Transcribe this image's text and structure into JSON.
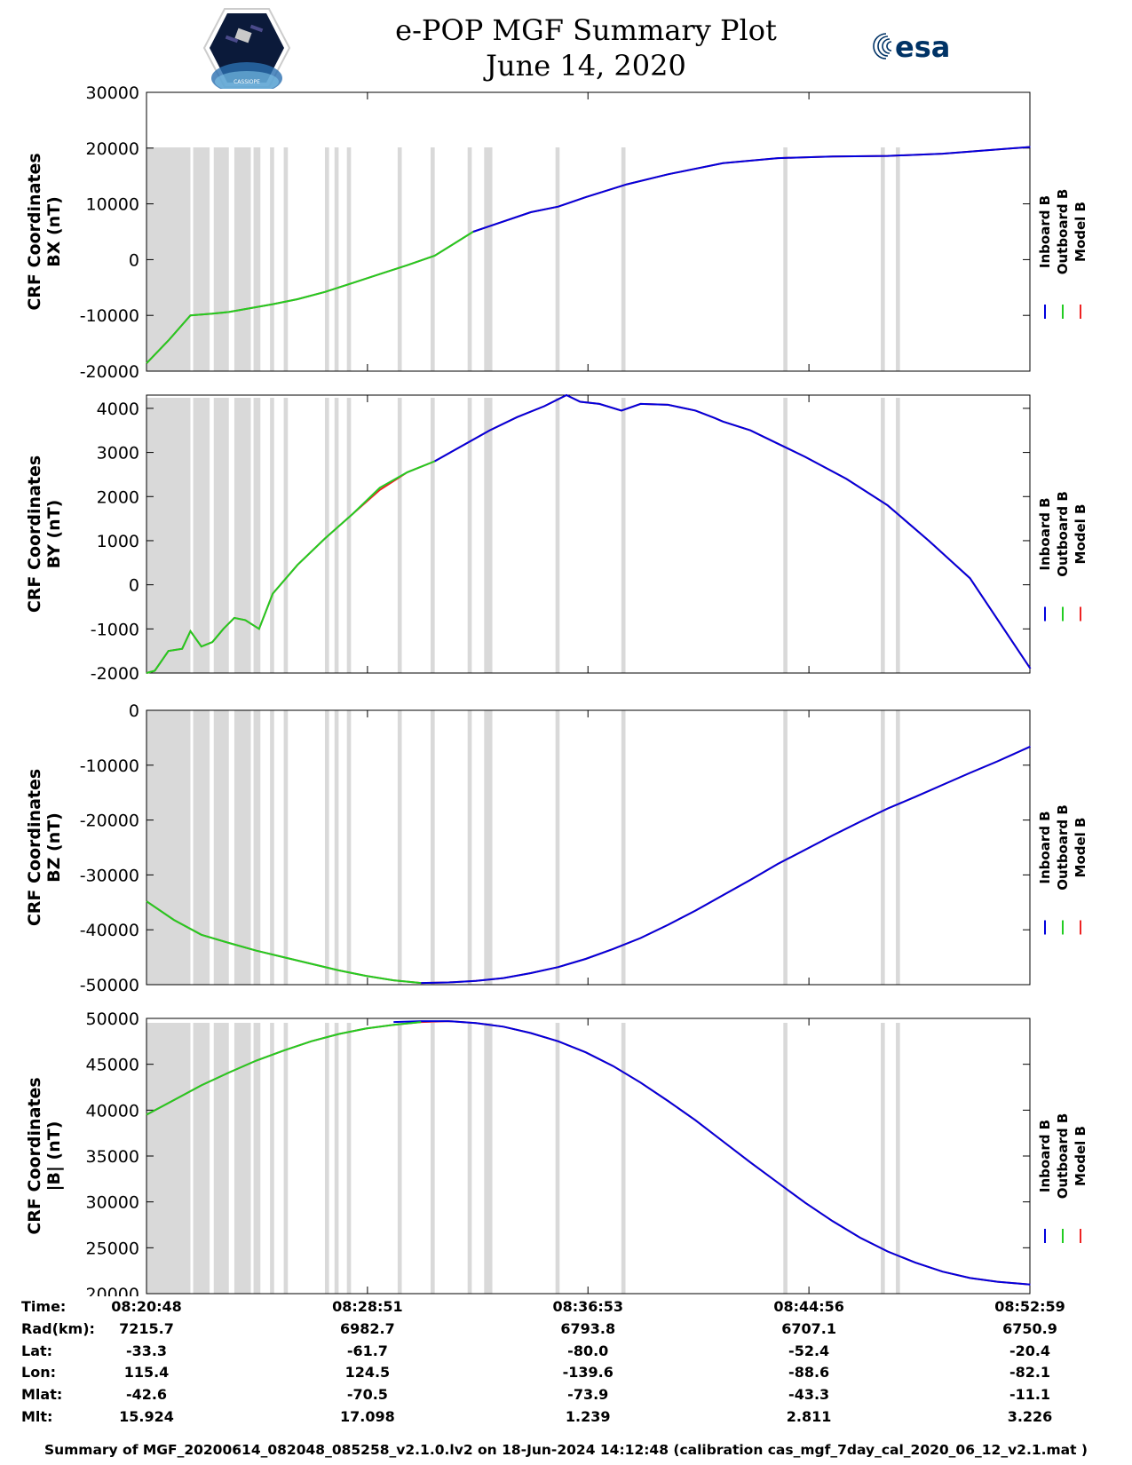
{
  "header": {
    "title": "e-POP MGF Summary Plot",
    "date": "June 14, 2020",
    "logo_left_text": "CASSIOPE",
    "logo_right_text": "esa"
  },
  "colors": {
    "inboard": "#0000dd",
    "outboard": "#22cc22",
    "model": "#ee2222",
    "gap": "#d9d9d9"
  },
  "legend": [
    "Inboard B",
    "Outboard B",
    "Model B"
  ],
  "time_axis": {
    "ticks": [
      "08:20:48",
      "08:28:51",
      "08:36:53",
      "08:44:56",
      "08:52:59"
    ],
    "tick_minutes": [
      0,
      8.05,
      16.083,
      24.133,
      32.183
    ]
  },
  "gap_intervals_min": [
    [
      0,
      1.6
    ],
    [
      1.7,
      2.3
    ],
    [
      2.45,
      3.0
    ],
    [
      3.2,
      3.8
    ],
    [
      3.9,
      4.15
    ],
    [
      4.5,
      4.65
    ],
    [
      5.0,
      5.15
    ],
    [
      6.5,
      6.65
    ],
    [
      6.85,
      7.0
    ],
    [
      7.3,
      7.45
    ],
    [
      9.15,
      9.3
    ],
    [
      10.35,
      10.5
    ],
    [
      11.7,
      11.85
    ],
    [
      12.3,
      12.6
    ],
    [
      14.9,
      15.05
    ],
    [
      17.3,
      17.45
    ],
    [
      23.2,
      23.35
    ],
    [
      26.75,
      26.9
    ],
    [
      27.3,
      27.45
    ]
  ],
  "chart_data": [
    {
      "type": "line",
      "title": "",
      "xlabel": "Time",
      "ylabel_line1": "CRF Coordinates",
      "ylabel_line2": "BX (nT)",
      "ylim": [
        -20000,
        30000
      ],
      "yticks": [
        -20000,
        -10000,
        0,
        10000,
        20000,
        30000
      ],
      "x": [
        0,
        0.8,
        1.6,
        2.4,
        3.0,
        3.8,
        4.6,
        5.5,
        6.5,
        7.5,
        8.5,
        9.5,
        10.5,
        11.9,
        12.5,
        14.0,
        15.0,
        16.0,
        17.5,
        19.0,
        21.0,
        23.0,
        25.0,
        27.0,
        29.0,
        32.2
      ],
      "series": [
        {
          "name": "Inboard B",
          "values": [
            null,
            null,
            null,
            null,
            null,
            null,
            null,
            null,
            null,
            null,
            null,
            null,
            null,
            5000,
            6000,
            8500,
            9500,
            11200,
            13500,
            15300,
            17300,
            18200,
            18500,
            18600,
            19000,
            20200
          ]
        },
        {
          "name": "Outboard B",
          "values": [
            -18600,
            -14500,
            -10000,
            -9700,
            -9400,
            -8700,
            -8000,
            -7100,
            -5800,
            -4200,
            -2600,
            -1000,
            700,
            5000,
            null,
            null,
            null,
            null,
            null,
            null,
            null,
            null,
            null,
            null,
            null,
            null
          ]
        },
        {
          "name": "Model B",
          "values": [
            -18600,
            -14500,
            -10000,
            -9700,
            -9400,
            -8700,
            -8000,
            -7100,
            -5800,
            -4200,
            -2600,
            -1000,
            700,
            5000,
            6000,
            8500,
            9500,
            11200,
            13500,
            15300,
            17300,
            18200,
            18500,
            18600,
            19000,
            20200
          ]
        }
      ]
    },
    {
      "type": "line",
      "title": "",
      "xlabel": "Time",
      "ylabel_line1": "CRF Coordinates",
      "ylabel_line2": "BY (nT)",
      "ylim": [
        -2000,
        4300
      ],
      "yticks": [
        -2000,
        -1000,
        0,
        1000,
        2000,
        3000,
        4000
      ],
      "x": [
        0,
        0.3,
        0.8,
        1.3,
        1.6,
        2.0,
        2.4,
        2.8,
        3.2,
        3.6,
        4.1,
        4.6,
        5.5,
        6.5,
        7.5,
        8.5,
        9.5,
        10.5,
        11.5,
        12.5,
        13.5,
        14.5,
        15.3,
        15.8,
        16.5,
        17.3,
        18.0,
        19.0,
        20.0,
        20.7,
        21.0,
        22.0,
        23.0,
        24.0,
        25.5,
        27.0,
        28.5,
        30.0,
        32.2
      ],
      "series": [
        {
          "name": "Inboard B",
          "values": [
            null,
            null,
            null,
            null,
            null,
            null,
            null,
            null,
            null,
            null,
            null,
            null,
            null,
            null,
            null,
            null,
            null,
            2800,
            3150,
            3500,
            3800,
            4050,
            4300,
            4150,
            4100,
            3950,
            4100,
            4080,
            3950,
            3780,
            3700,
            3500,
            3200,
            2900,
            2400,
            1800,
            1000,
            150,
            -1900
          ]
        },
        {
          "name": "Outboard B",
          "values": [
            -2000,
            -1950,
            -1500,
            -1450,
            -1050,
            -1400,
            -1300,
            -1000,
            -750,
            -800,
            -1000,
            -200,
            450,
            1050,
            1600,
            2200,
            2550,
            2800,
            null,
            null,
            null,
            null,
            null,
            null,
            null,
            null,
            null,
            null,
            null,
            null,
            null,
            null,
            null,
            null,
            null,
            null,
            null,
            null,
            null
          ]
        },
        {
          "name": "Model B",
          "values": [
            -2000,
            -1950,
            -1500,
            -1450,
            -1050,
            -1400,
            -1300,
            -1000,
            -750,
            -800,
            -1000,
            -200,
            450,
            1050,
            1600,
            2150,
            2550,
            2800,
            3150,
            3500,
            3800,
            4050,
            4300,
            4150,
            4100,
            3950,
            4100,
            4080,
            3950,
            3780,
            3700,
            3500,
            3200,
            2900,
            2400,
            1800,
            1000,
            150,
            -1900
          ]
        }
      ]
    },
    {
      "type": "line",
      "title": "",
      "xlabel": "Time",
      "ylabel_line1": "CRF Coordinates",
      "ylabel_line2": "BZ (nT)",
      "ylim": [
        -50000,
        0
      ],
      "yticks": [
        -50000,
        -40000,
        -30000,
        -20000,
        -10000,
        0
      ],
      "x": [
        0,
        1.0,
        2.0,
        3.0,
        4.0,
        5.0,
        6.0,
        7.0,
        8.0,
        9.0,
        10.0,
        11.0,
        12.0,
        13.0,
        14.0,
        15.0,
        16.0,
        17.0,
        18.0,
        19.0,
        20.0,
        21.0,
        22.0,
        23.0,
        24.0,
        25.0,
        26.0,
        27.0,
        28.0,
        29.0,
        30.0,
        31.0,
        32.2
      ],
      "series": [
        {
          "name": "Inboard B",
          "values": [
            null,
            null,
            null,
            null,
            null,
            null,
            null,
            null,
            null,
            null,
            -49700,
            -49600,
            -49300,
            -48800,
            -47900,
            -46800,
            -45300,
            -43500,
            -41500,
            -39100,
            -36500,
            -33700,
            -30900,
            -28000,
            -25400,
            -22800,
            -20300,
            -17900,
            -15800,
            -13600,
            -11400,
            -9300,
            -6600
          ]
        },
        {
          "name": "Outboard B",
          "values": [
            -34800,
            -38200,
            -40900,
            -42400,
            -43800,
            -45000,
            -46200,
            -47400,
            -48400,
            -49200,
            -49700,
            null,
            null,
            null,
            null,
            null,
            null,
            null,
            null,
            null,
            null,
            null,
            null,
            null,
            null,
            null,
            null,
            null,
            null,
            null,
            null,
            null,
            null
          ]
        },
        {
          "name": "Model B",
          "values": [
            -34800,
            -38200,
            -40900,
            -42400,
            -43800,
            -45000,
            -46200,
            -47400,
            -48400,
            -49200,
            -49700,
            -49600,
            -49300,
            -48800,
            -47900,
            -46800,
            -45300,
            -43500,
            -41500,
            -39100,
            -36500,
            -33700,
            -30900,
            -28000,
            -25400,
            -22800,
            -20300,
            -17900,
            -15800,
            -13600,
            -11400,
            -9300,
            -6600
          ]
        }
      ]
    },
    {
      "type": "line",
      "title": "",
      "xlabel": "Time",
      "ylabel_line1": "CRF Coordinates",
      "ylabel_line2": "|B| (nT)",
      "ylim": [
        20000,
        50000
      ],
      "yticks": [
        20000,
        25000,
        30000,
        35000,
        40000,
        45000,
        50000
      ],
      "x": [
        0,
        1.0,
        2.0,
        3.0,
        4.0,
        5.0,
        6.0,
        7.0,
        8.0,
        9.0,
        10.0,
        11.0,
        12.0,
        13.0,
        14.0,
        15.0,
        16.0,
        17.0,
        18.0,
        19.0,
        20.0,
        21.0,
        22.0,
        23.0,
        24.0,
        25.0,
        26.0,
        27.0,
        28.0,
        29.0,
        30.0,
        31.0,
        32.2
      ],
      "series": [
        {
          "name": "Inboard B",
          "values": [
            null,
            null,
            null,
            null,
            null,
            null,
            null,
            null,
            null,
            49600,
            49700,
            49700,
            49500,
            49100,
            48400,
            47500,
            46300,
            44800,
            43000,
            41000,
            38900,
            36600,
            34300,
            32100,
            29900,
            27900,
            26100,
            24600,
            23400,
            22400,
            21700,
            21300,
            21000
          ]
        },
        {
          "name": "Outboard B",
          "values": [
            39500,
            41100,
            42700,
            44100,
            45400,
            46500,
            47500,
            48300,
            48900,
            49300,
            49600,
            null,
            null,
            null,
            null,
            null,
            null,
            null,
            null,
            null,
            null,
            null,
            null,
            null,
            null,
            null,
            null,
            null,
            null,
            null,
            null,
            null,
            null
          ]
        },
        {
          "name": "Model B",
          "values": [
            39500,
            41100,
            42700,
            44100,
            45400,
            46500,
            47500,
            48300,
            48900,
            49300,
            49600,
            49700,
            49500,
            49100,
            48400,
            47500,
            46300,
            44800,
            43000,
            41000,
            38900,
            36600,
            34300,
            32100,
            29900,
            27900,
            26100,
            24600,
            23400,
            22400,
            21700,
            21300,
            21000
          ]
        }
      ]
    }
  ],
  "orbit_table": {
    "labels": [
      "Time:",
      "Rad(km):",
      "Lat:",
      "Lon:",
      "Mlat:",
      "Mlt:"
    ],
    "rows": [
      [
        "08:20:48",
        "08:28:51",
        "08:36:53",
        "08:44:56",
        "08:52:59"
      ],
      [
        "7215.7",
        "6982.7",
        "6793.8",
        "6707.1",
        "6750.9"
      ],
      [
        "-33.3",
        "-61.7",
        "-80.0",
        "-52.4",
        "-20.4"
      ],
      [
        "115.4",
        "124.5",
        "-139.6",
        "-88.6",
        "-82.1"
      ],
      [
        "-42.6",
        "-70.5",
        "-73.9",
        "-43.3",
        "-11.1"
      ],
      [
        "15.924",
        "17.098",
        "1.239",
        "2.811",
        "3.226"
      ]
    ]
  },
  "footer": {
    "summary": "Summary of MGF_20200614_082048_085258_v2.1.0.lv2 on 18-Jun-2024 14:12:48 (calibration cas_mgf_7day_cal_2020_06_12_v2.1.mat )"
  }
}
